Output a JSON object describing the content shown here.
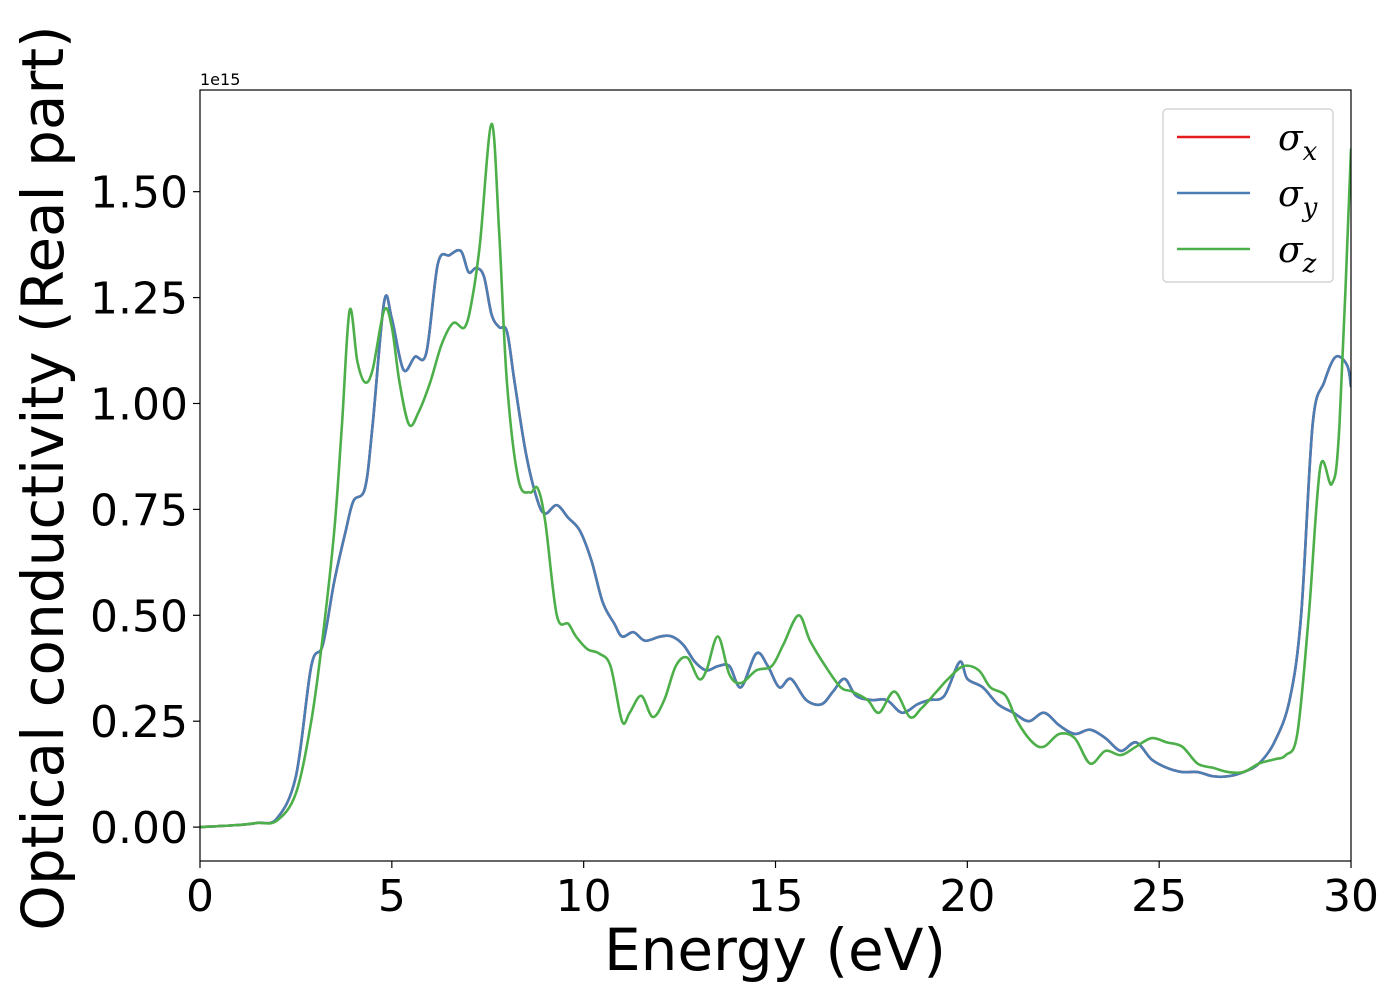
{
  "chart_data": {
    "type": "line",
    "xlabel": "Energy (eV)",
    "ylabel": "Optical conductivity (Real part)",
    "y_offset_label": "1e15",
    "xlim": [
      0,
      30
    ],
    "ylim": [
      -0.08,
      1.74
    ],
    "x_ticks": [
      0,
      5,
      10,
      15,
      20,
      25,
      30
    ],
    "x_tick_labels": [
      "0",
      "5",
      "10",
      "15",
      "20",
      "25",
      "30"
    ],
    "y_ticks": [
      0.0,
      0.25,
      0.5,
      0.75,
      1.0,
      1.25,
      1.5
    ],
    "y_tick_labels": [
      "0.00",
      "0.25",
      "0.50",
      "0.75",
      "1.00",
      "1.25",
      "1.50"
    ],
    "grid": false,
    "legend_position": "top-right",
    "series": [
      {
        "name": "σx",
        "legend_base": "σ",
        "legend_sub": "x",
        "color": "#e41a1c",
        "x": [
          0,
          1,
          1.5,
          2,
          2.5,
          2.9,
          3.2,
          3.5,
          3.8,
          4.0,
          4.3,
          4.5,
          4.8,
          5.0,
          5.3,
          5.6,
          5.9,
          6.2,
          6.5,
          6.8,
          7.0,
          7.2,
          7.4,
          7.6,
          7.8,
          8.0,
          8.2,
          8.5,
          8.8,
          9.0,
          9.3,
          9.6,
          9.9,
          10.2,
          10.5,
          10.8,
          11.0,
          11.3,
          11.6,
          12.0,
          12.3,
          12.6,
          12.9,
          13.2,
          13.5,
          13.8,
          14.1,
          14.5,
          14.8,
          15.1,
          15.4,
          15.8,
          16.2,
          16.5,
          16.8,
          17.1,
          17.5,
          17.9,
          18.3,
          18.7,
          19.0,
          19.4,
          19.8,
          20.0,
          20.4,
          20.8,
          21.2,
          21.6,
          22.0,
          22.4,
          22.8,
          23.2,
          23.6,
          24.0,
          24.4,
          24.8,
          25.2,
          25.6,
          26.0,
          26.4,
          26.8,
          27.2,
          27.6,
          28.0,
          28.4,
          28.7,
          29.0,
          29.3,
          29.6,
          29.9,
          30.0
        ],
        "y": [
          0,
          0.005,
          0.01,
          0.02,
          0.12,
          0.38,
          0.43,
          0.58,
          0.7,
          0.77,
          0.8,
          0.95,
          1.24,
          1.2,
          1.08,
          1.11,
          1.12,
          1.33,
          1.35,
          1.36,
          1.31,
          1.32,
          1.3,
          1.21,
          1.18,
          1.17,
          1.05,
          0.88,
          0.77,
          0.74,
          0.76,
          0.73,
          0.7,
          0.63,
          0.53,
          0.48,
          0.45,
          0.46,
          0.44,
          0.45,
          0.45,
          0.43,
          0.39,
          0.37,
          0.38,
          0.38,
          0.33,
          0.41,
          0.38,
          0.33,
          0.35,
          0.3,
          0.29,
          0.32,
          0.35,
          0.31,
          0.3,
          0.3,
          0.27,
          0.29,
          0.3,
          0.31,
          0.39,
          0.35,
          0.33,
          0.29,
          0.27,
          0.25,
          0.27,
          0.24,
          0.22,
          0.23,
          0.21,
          0.18,
          0.2,
          0.16,
          0.14,
          0.13,
          0.13,
          0.12,
          0.12,
          0.13,
          0.15,
          0.2,
          0.3,
          0.5,
          0.95,
          1.05,
          1.11,
          1.09,
          1.04
        ]
      },
      {
        "name": "σy",
        "legend_base": "σ",
        "legend_sub": "y",
        "color": "#4a7fb5",
        "x": [
          0,
          1,
          1.5,
          2,
          2.5,
          2.9,
          3.2,
          3.5,
          3.8,
          4.0,
          4.3,
          4.5,
          4.8,
          5.0,
          5.3,
          5.6,
          5.9,
          6.2,
          6.5,
          6.8,
          7.0,
          7.2,
          7.4,
          7.6,
          7.8,
          8.0,
          8.2,
          8.5,
          8.8,
          9.0,
          9.3,
          9.6,
          9.9,
          10.2,
          10.5,
          10.8,
          11.0,
          11.3,
          11.6,
          12.0,
          12.3,
          12.6,
          12.9,
          13.2,
          13.5,
          13.8,
          14.1,
          14.5,
          14.8,
          15.1,
          15.4,
          15.8,
          16.2,
          16.5,
          16.8,
          17.1,
          17.5,
          17.9,
          18.3,
          18.7,
          19.0,
          19.4,
          19.8,
          20.0,
          20.4,
          20.8,
          21.2,
          21.6,
          22.0,
          22.4,
          22.8,
          23.2,
          23.6,
          24.0,
          24.4,
          24.8,
          25.2,
          25.6,
          26.0,
          26.4,
          26.8,
          27.2,
          27.6,
          28.0,
          28.4,
          28.7,
          29.0,
          29.3,
          29.6,
          29.9,
          30.0
        ],
        "y": [
          0,
          0.005,
          0.01,
          0.02,
          0.12,
          0.38,
          0.43,
          0.58,
          0.7,
          0.77,
          0.8,
          0.95,
          1.24,
          1.2,
          1.08,
          1.11,
          1.12,
          1.33,
          1.35,
          1.36,
          1.31,
          1.32,
          1.3,
          1.21,
          1.18,
          1.17,
          1.05,
          0.88,
          0.77,
          0.74,
          0.76,
          0.73,
          0.7,
          0.63,
          0.53,
          0.48,
          0.45,
          0.46,
          0.44,
          0.45,
          0.45,
          0.43,
          0.39,
          0.37,
          0.38,
          0.38,
          0.33,
          0.41,
          0.38,
          0.33,
          0.35,
          0.3,
          0.29,
          0.32,
          0.35,
          0.31,
          0.3,
          0.3,
          0.27,
          0.29,
          0.3,
          0.31,
          0.39,
          0.35,
          0.33,
          0.29,
          0.27,
          0.25,
          0.27,
          0.24,
          0.22,
          0.23,
          0.21,
          0.18,
          0.2,
          0.16,
          0.14,
          0.13,
          0.13,
          0.12,
          0.12,
          0.13,
          0.15,
          0.2,
          0.3,
          0.5,
          0.95,
          1.05,
          1.11,
          1.09,
          1.04
        ]
      },
      {
        "name": "σz",
        "legend_base": "σ",
        "legend_sub": "z",
        "color": "#4daf4a",
        "x": [
          0,
          1,
          1.5,
          2,
          2.5,
          2.9,
          3.2,
          3.5,
          3.7,
          3.9,
          4.1,
          4.3,
          4.5,
          4.8,
          5.0,
          5.2,
          5.45,
          5.7,
          6.0,
          6.3,
          6.6,
          6.9,
          7.1,
          7.3,
          7.6,
          7.8,
          8.0,
          8.3,
          8.6,
          8.8,
          9.0,
          9.3,
          9.6,
          9.8,
          10.1,
          10.4,
          10.7,
          11.0,
          11.2,
          11.5,
          11.8,
          12.1,
          12.4,
          12.7,
          13.0,
          13.2,
          13.5,
          13.8,
          14.1,
          14.5,
          14.9,
          15.2,
          15.6,
          15.9,
          16.3,
          16.7,
          17.0,
          17.4,
          17.7,
          18.1,
          18.5,
          18.8,
          19.2,
          19.5,
          19.9,
          20.3,
          20.6,
          21.0,
          21.3,
          21.7,
          22.0,
          22.4,
          22.8,
          23.2,
          23.6,
          24.0,
          24.4,
          24.8,
          25.2,
          25.6,
          26.0,
          26.4,
          26.8,
          27.2,
          27.6,
          28.0,
          28.3,
          28.6,
          28.9,
          29.2,
          29.5,
          29.7,
          30.0
        ],
        "y": [
          0,
          0.005,
          0.01,
          0.015,
          0.08,
          0.25,
          0.45,
          0.7,
          0.95,
          1.22,
          1.1,
          1.05,
          1.08,
          1.22,
          1.18,
          1.05,
          0.95,
          0.98,
          1.05,
          1.14,
          1.19,
          1.18,
          1.25,
          1.38,
          1.66,
          1.4,
          1.05,
          0.82,
          0.79,
          0.8,
          0.72,
          0.5,
          0.48,
          0.45,
          0.42,
          0.41,
          0.38,
          0.25,
          0.27,
          0.31,
          0.26,
          0.3,
          0.38,
          0.4,
          0.35,
          0.37,
          0.45,
          0.36,
          0.34,
          0.37,
          0.38,
          0.43,
          0.5,
          0.44,
          0.38,
          0.33,
          0.32,
          0.3,
          0.27,
          0.32,
          0.26,
          0.28,
          0.32,
          0.35,
          0.38,
          0.37,
          0.33,
          0.31,
          0.25,
          0.2,
          0.19,
          0.22,
          0.21,
          0.15,
          0.18,
          0.17,
          0.19,
          0.21,
          0.2,
          0.19,
          0.15,
          0.14,
          0.13,
          0.13,
          0.15,
          0.16,
          0.17,
          0.22,
          0.5,
          0.85,
          0.81,
          0.95,
          1.6
        ]
      }
    ]
  }
}
